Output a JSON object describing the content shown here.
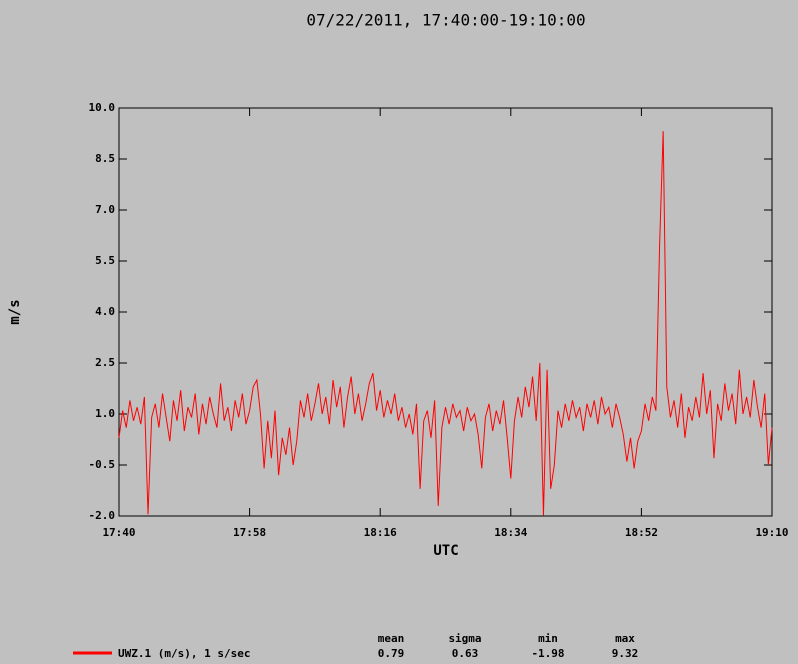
{
  "chart_data": {
    "type": "line",
    "title": "07/22/2011, 17:40:00-19:10:00",
    "xlabel": "UTC",
    "ylabel": "m/s",
    "x": [
      "17:40:00",
      "17:40:30",
      "17:41:00",
      "17:41:30",
      "17:42:00",
      "17:42:30",
      "17:43:00",
      "17:43:30",
      "17:44:00",
      "17:44:30",
      "17:45:00",
      "17:45:30",
      "17:46:00",
      "17:46:30",
      "17:47:00",
      "17:47:30",
      "17:48:00",
      "17:48:30",
      "17:49:00",
      "17:49:30",
      "17:50:00",
      "17:50:30",
      "17:51:00",
      "17:51:30",
      "17:52:00",
      "17:52:30",
      "17:53:00",
      "17:53:30",
      "17:54:00",
      "17:54:30",
      "17:55:00",
      "17:55:30",
      "17:56:00",
      "17:56:30",
      "17:57:00",
      "17:57:30",
      "17:58:00",
      "17:58:30",
      "17:59:00",
      "17:59:30",
      "18:00:00",
      "18:00:30",
      "18:01:00",
      "18:01:30",
      "18:02:00",
      "18:02:30",
      "18:03:00",
      "18:03:30",
      "18:04:00",
      "18:04:30",
      "18:05:00",
      "18:05:30",
      "18:06:00",
      "18:06:30",
      "18:07:00",
      "18:07:30",
      "18:08:00",
      "18:08:30",
      "18:09:00",
      "18:09:30",
      "18:10:00",
      "18:10:30",
      "18:11:00",
      "18:11:30",
      "18:12:00",
      "18:12:30",
      "18:13:00",
      "18:13:30",
      "18:14:00",
      "18:14:30",
      "18:15:00",
      "18:15:30",
      "18:16:00",
      "18:16:30",
      "18:17:00",
      "18:17:30",
      "18:18:00",
      "18:18:30",
      "18:19:00",
      "18:19:30",
      "18:20:00",
      "18:20:30",
      "18:21:00",
      "18:21:30",
      "18:22:00",
      "18:22:30",
      "18:23:00",
      "18:23:30",
      "18:24:00",
      "18:24:30",
      "18:25:00",
      "18:25:30",
      "18:26:00",
      "18:26:30",
      "18:27:00",
      "18:27:30",
      "18:28:00",
      "18:28:30",
      "18:29:00",
      "18:29:30",
      "18:30:00",
      "18:30:30",
      "18:31:00",
      "18:31:30",
      "18:32:00",
      "18:32:30",
      "18:33:00",
      "18:33:30",
      "18:34:00",
      "18:34:30",
      "18:35:00",
      "18:35:30",
      "18:36:00",
      "18:36:30",
      "18:37:00",
      "18:37:30",
      "18:38:00",
      "18:38:30",
      "18:39:00",
      "18:39:30",
      "18:40:00",
      "18:40:30",
      "18:41:00",
      "18:41:30",
      "18:42:00",
      "18:42:30",
      "18:43:00",
      "18:43:30",
      "18:44:00",
      "18:44:30",
      "18:45:00",
      "18:45:30",
      "18:46:00",
      "18:46:30",
      "18:47:00",
      "18:47:30",
      "18:48:00",
      "18:48:30",
      "18:49:00",
      "18:49:30",
      "18:50:00",
      "18:50:30",
      "18:51:00",
      "18:51:30",
      "18:52:00",
      "18:52:30",
      "18:53:00",
      "18:53:30",
      "18:54:00",
      "18:54:30",
      "18:55:00",
      "18:55:30",
      "18:56:00",
      "18:56:30",
      "18:57:00",
      "18:57:30",
      "18:58:00",
      "18:58:30",
      "18:59:00",
      "18:59:30",
      "19:00:00",
      "19:00:30",
      "19:01:00",
      "19:01:30",
      "19:02:00",
      "19:02:30",
      "19:03:00",
      "19:03:30",
      "19:04:00",
      "19:04:30",
      "19:05:00",
      "19:05:30",
      "19:06:00",
      "19:06:30",
      "19:07:00",
      "19:07:30",
      "19:08:00",
      "19:08:30",
      "19:09:00",
      "19:09:30",
      "19:10:00"
    ],
    "series": [
      {
        "name": "UWZ.1 (m/s), 1 s/sec",
        "color": "#ff0000",
        "values": [
          0.3,
          1.1,
          0.6,
          1.4,
          0.8,
          1.2,
          0.7,
          1.5,
          -1.95,
          0.9,
          1.3,
          0.6,
          1.6,
          0.9,
          0.2,
          1.4,
          0.8,
          1.7,
          0.5,
          1.2,
          0.9,
          1.6,
          0.4,
          1.3,
          0.7,
          1.5,
          1.0,
          0.6,
          1.9,
          0.8,
          1.2,
          0.5,
          1.4,
          0.9,
          1.6,
          0.7,
          1.1,
          1.8,
          2.0,
          1.0,
          -0.6,
          0.8,
          -0.3,
          1.1,
          -0.8,
          0.3,
          -0.2,
          0.6,
          -0.5,
          0.2,
          1.4,
          0.9,
          1.6,
          0.8,
          1.3,
          1.9,
          1.0,
          1.5,
          0.7,
          2.0,
          1.2,
          1.8,
          0.6,
          1.5,
          2.1,
          1.0,
          1.6,
          0.8,
          1.3,
          1.9,
          2.2,
          1.1,
          1.7,
          0.9,
          1.4,
          1.0,
          1.6,
          0.8,
          1.2,
          0.6,
          1.0,
          0.4,
          1.3,
          -1.2,
          0.8,
          1.1,
          0.3,
          1.4,
          -1.7,
          0.6,
          1.2,
          0.7,
          1.3,
          0.9,
          1.1,
          0.5,
          1.2,
          0.8,
          1.0,
          0.4,
          -0.6,
          0.9,
          1.3,
          0.5,
          1.1,
          0.7,
          1.4,
          0.3,
          -0.9,
          0.8,
          1.5,
          0.9,
          1.8,
          1.2,
          2.1,
          0.8,
          2.5,
          -1.98,
          2.3,
          -1.2,
          -0.5,
          1.1,
          0.6,
          1.3,
          0.8,
          1.4,
          0.9,
          1.2,
          0.5,
          1.3,
          0.9,
          1.4,
          0.7,
          1.5,
          1.0,
          1.2,
          0.6,
          1.3,
          0.9,
          0.4,
          -0.4,
          0.3,
          -0.6,
          0.2,
          0.5,
          1.3,
          0.8,
          1.5,
          1.1,
          5.9,
          9.32,
          1.8,
          0.9,
          1.4,
          0.6,
          1.6,
          0.3,
          1.2,
          0.8,
          1.5,
          0.9,
          2.2,
          1.0,
          1.7,
          -0.3,
          1.3,
          0.8,
          1.9,
          1.1,
          1.6,
          0.7,
          2.3,
          1.0,
          1.5,
          0.9,
          2.0,
          1.2,
          0.6,
          1.6,
          -0.5,
          0.6
        ]
      }
    ],
    "xlim": [
      "17:40",
      "19:10"
    ],
    "xticks": [
      "17:40",
      "17:58",
      "18:16",
      "18:34",
      "18:52",
      "19:10"
    ],
    "ylim": [
      -2,
      10
    ],
    "yticks": [
      {
        "value": -2,
        "label": "-2.0"
      },
      -0.5,
      {
        "value": 1,
        "label": "1.0"
      },
      2.5,
      {
        "value": 4,
        "label": "4.0"
      },
      5.5,
      {
        "value": 7,
        "label": "7.0"
      },
      8.5,
      {
        "value": 10,
        "label": "10.0"
      }
    ],
    "stats": {
      "headers": [
        "mean",
        "sigma",
        "min",
        "max"
      ],
      "values": [
        0.79,
        0.63,
        -1.98,
        9.32
      ]
    }
  }
}
